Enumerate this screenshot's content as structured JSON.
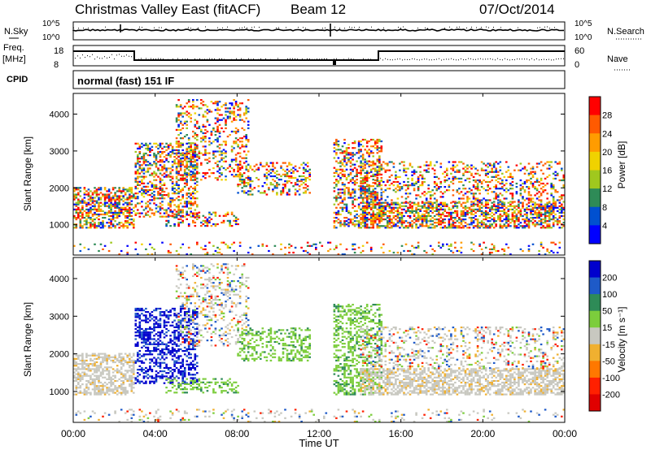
{
  "header": {
    "title": "Christmas Valley East (fitACF)",
    "beam": "Beam 12",
    "date": "07/Oct/2014"
  },
  "status_panels": {
    "nsky_label": "N.Sky",
    "nsky_ticks": [
      "10^5",
      "10^0"
    ],
    "nsearch_label": "N.Search",
    "freq_label": "Freq.",
    "freq_unit": "[MHz]",
    "freq_ticks": [
      "18",
      "8"
    ],
    "nave_label": "Nave",
    "nave_ticks": [
      "60",
      "0"
    ],
    "cpid_label": "CPID",
    "cpid_value": "normal (fast) 151 IF"
  },
  "time_axis": {
    "label": "Time UT",
    "ticks": [
      "00:00",
      "04:00",
      "08:00",
      "12:00",
      "16:00",
      "20:00",
      "00:00"
    ],
    "hours": [
      0,
      4,
      8,
      12,
      16,
      20,
      24
    ]
  },
  "chart_data": [
    {
      "type": "heatmap",
      "ylabel": "Slant Range [km]",
      "yticks": [
        1000,
        2000,
        3000,
        4000
      ],
      "ylim": [
        180,
        4560
      ],
      "xlim": [
        0,
        24
      ],
      "colorbar": {
        "label": "Power [dB]",
        "ticks": [
          "28",
          "24",
          "20",
          "16",
          "12",
          "8",
          "4"
        ],
        "colors": [
          "#ff0000",
          "#ff5a00",
          "#ff9c00",
          "#f0d200",
          "#a0c81e",
          "#2e8b57",
          "#0050d0",
          "#0000ff"
        ]
      }
    },
    {
      "type": "heatmap",
      "ylabel": "Slant Range [km]",
      "yticks": [
        1000,
        2000,
        3000,
        4000
      ],
      "ylim": [
        180,
        4560
      ],
      "xlim": [
        0,
        24
      ],
      "colorbar": {
        "label": "Velocity [m s⁻¹]",
        "ticks": [
          "200",
          "100",
          "50",
          "15",
          "-15",
          "-50",
          "-100",
          "-200"
        ],
        "colors": [
          "#0000cd",
          "#1e5ac8",
          "#2e8b57",
          "#7ccd3c",
          "#c8c8c0",
          "#f0b030",
          "#ff7800",
          "#ff2000",
          "#e00000"
        ]
      }
    }
  ]
}
